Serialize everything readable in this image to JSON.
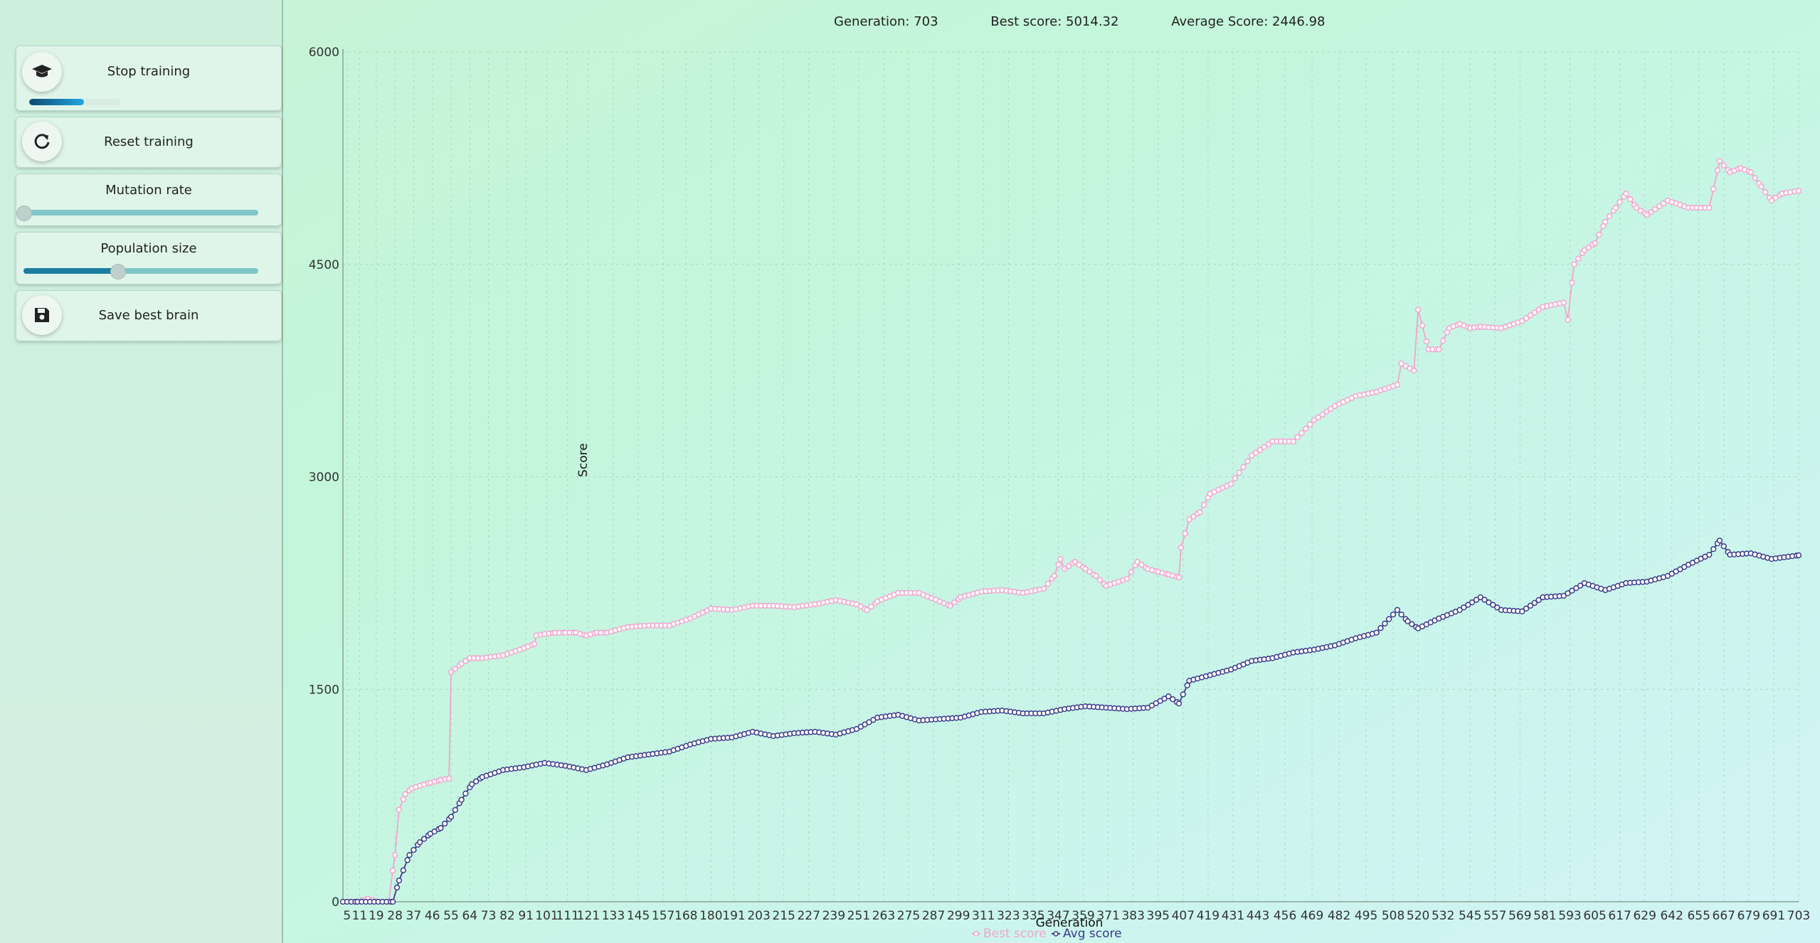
{
  "sidebar": {
    "stop_training": {
      "label": "Stop training",
      "icon": "graduation-cap-icon",
      "progress": 0.6
    },
    "reset_training": {
      "label": "Reset training",
      "icon": "refresh-icon"
    },
    "mutation_rate": {
      "label": "Mutation rate",
      "value": 0.0
    },
    "population_size": {
      "label": "Population size",
      "value": 0.4
    },
    "save_best_brain": {
      "label": "Save best brain",
      "icon": "save-icon"
    }
  },
  "stats": {
    "generation": "Generation: 703",
    "best_score": "Best score: 5014.32",
    "average_score": "Average Score: 2446.98"
  },
  "colors": {
    "best": "#f4a3cf",
    "avg": "#3c3a8a"
  },
  "chart_data": {
    "type": "line",
    "xlabel": "Generation",
    "ylabel": "Score",
    "ylim": [
      0,
      6000
    ],
    "yticks": [
      0,
      1500,
      3000,
      4500,
      6000
    ],
    "xlim": [
      3,
      703
    ],
    "xticks": [
      5,
      11,
      19,
      28,
      37,
      46,
      55,
      64,
      73,
      82,
      91,
      101,
      111,
      121,
      133,
      145,
      157,
      168,
      180,
      191,
      203,
      215,
      227,
      239,
      251,
      263,
      275,
      287,
      299,
      311,
      323,
      335,
      347,
      359,
      371,
      383,
      395,
      407,
      419,
      431,
      443,
      456,
      469,
      482,
      495,
      508,
      520,
      532,
      545,
      557,
      569,
      581,
      593,
      605,
      617,
      629,
      642,
      655,
      667,
      679,
      691,
      703
    ],
    "grid": true,
    "legend": "bottom",
    "series": [
      {
        "name": "Best score",
        "x": [
          3,
          10,
          15,
          20,
          25,
          28,
          30,
          33,
          36,
          40,
          45,
          50,
          54,
          55,
          60,
          64,
          70,
          80,
          90,
          95,
          96,
          100,
          105,
          110,
          115,
          120,
          125,
          130,
          140,
          150,
          160,
          170,
          180,
          190,
          200,
          210,
          220,
          230,
          240,
          250,
          255,
          260,
          270,
          280,
          290,
          295,
          300,
          310,
          320,
          330,
          340,
          345,
          348,
          350,
          355,
          360,
          365,
          370,
          380,
          385,
          390,
          395,
          400,
          405,
          406,
          410,
          415,
          420,
          430,
          440,
          450,
          460,
          470,
          480,
          490,
          500,
          510,
          512,
          518,
          520,
          525,
          530,
          535,
          540,
          545,
          550,
          560,
          570,
          580,
          590,
          592,
          595,
          600,
          605,
          610,
          615,
          620,
          625,
          630,
          640,
          650,
          660,
          665,
          670,
          675,
          680,
          685,
          690,
          695,
          703
        ],
        "y": [
          0,
          0,
          20,
          0,
          0,
          330,
          650,
          760,
          800,
          820,
          840,
          860,
          870,
          1620,
          1680,
          1720,
          1720,
          1740,
          1790,
          1820,
          1880,
          1890,
          1900,
          1900,
          1900,
          1880,
          1900,
          1900,
          1940,
          1950,
          1950,
          2000,
          2070,
          2060,
          2090,
          2090,
          2080,
          2100,
          2130,
          2100,
          2060,
          2120,
          2180,
          2180,
          2120,
          2090,
          2150,
          2190,
          2200,
          2180,
          2210,
          2300,
          2420,
          2350,
          2400,
          2350,
          2300,
          2230,
          2280,
          2400,
          2350,
          2330,
          2310,
          2290,
          2500,
          2700,
          2750,
          2880,
          2950,
          3150,
          3250,
          3250,
          3400,
          3500,
          3570,
          3600,
          3650,
          3800,
          3750,
          4180,
          3900,
          3900,
          4050,
          4080,
          4050,
          4060,
          4050,
          4100,
          4200,
          4230,
          4110,
          4500,
          4600,
          4650,
          4800,
          4900,
          5000,
          4900,
          4850,
          4950,
          4900,
          4900,
          5230,
          5150,
          5180,
          5150,
          5050,
          4950,
          5000,
          5020
        ]
      },
      {
        "name": "Avg score",
        "x": [
          3,
          10,
          20,
          27,
          30,
          35,
          40,
          45,
          50,
          55,
          60,
          65,
          70,
          80,
          90,
          100,
          110,
          120,
          130,
          140,
          150,
          160,
          170,
          180,
          190,
          200,
          210,
          220,
          230,
          240,
          250,
          260,
          270,
          280,
          290,
          300,
          310,
          320,
          330,
          340,
          350,
          360,
          370,
          380,
          390,
          400,
          405,
          410,
          420,
          430,
          440,
          450,
          460,
          470,
          480,
          490,
          500,
          510,
          515,
          520,
          530,
          540,
          550,
          560,
          570,
          580,
          590,
          600,
          610,
          620,
          630,
          640,
          650,
          660,
          665,
          670,
          680,
          690,
          703
        ],
        "y": [
          0,
          0,
          0,
          0,
          150,
          330,
          420,
          480,
          520,
          600,
          720,
          830,
          880,
          930,
          950,
          980,
          960,
          930,
          970,
          1020,
          1040,
          1060,
          1110,
          1150,
          1160,
          1200,
          1170,
          1190,
          1200,
          1180,
          1220,
          1300,
          1320,
          1280,
          1290,
          1300,
          1340,
          1350,
          1330,
          1330,
          1360,
          1380,
          1370,
          1360,
          1370,
          1450,
          1400,
          1560,
          1600,
          1640,
          1700,
          1720,
          1760,
          1780,
          1810,
          1860,
          1900,
          2060,
          1980,
          1930,
          2000,
          2060,
          2150,
          2060,
          2050,
          2150,
          2160,
          2250,
          2200,
          2250,
          2260,
          2300,
          2380,
          2450,
          2550,
          2450,
          2460,
          2420,
          2446
        ]
      }
    ]
  }
}
